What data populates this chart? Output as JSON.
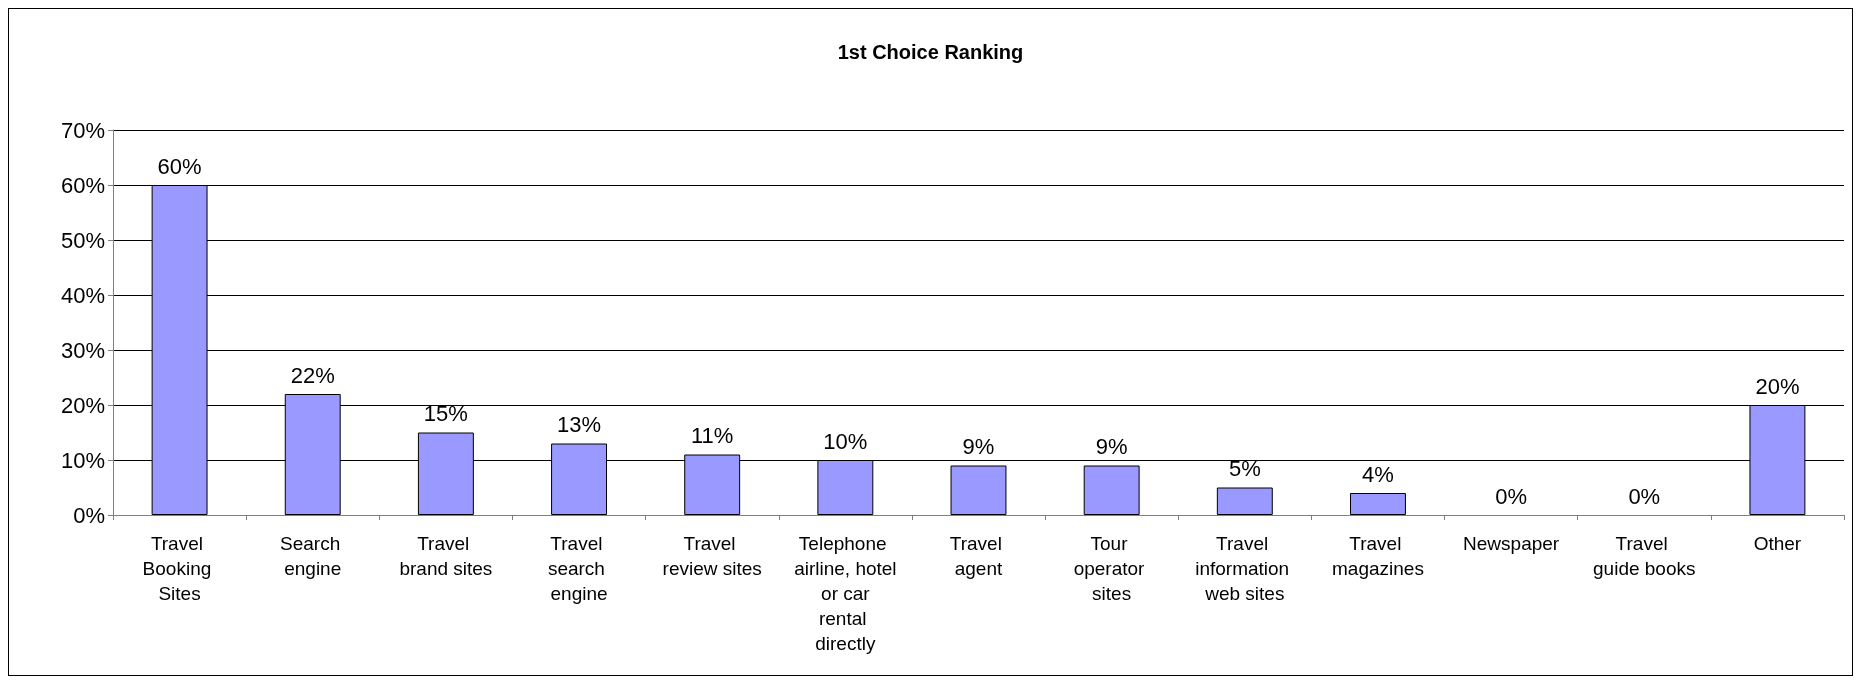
{
  "chart_data": {
    "type": "bar",
    "title": "1st Choice Ranking",
    "categories": [
      "Travel Booking Sites",
      "Search engine",
      "Travel brand sites",
      "Travel search engine",
      "Travel review sites",
      "Telephone airline, hotel or car rental directly",
      "Travel agent",
      "Tour operator sites",
      "Travel information web sites",
      "Travel magazines",
      "Newspaper",
      "Travel guide books",
      "Other"
    ],
    "values": [
      60,
      22,
      15,
      13,
      11,
      10,
      9,
      9,
      5,
      4,
      0,
      0,
      20
    ],
    "value_labels": [
      "60%",
      "22%",
      "15%",
      "13%",
      "11%",
      "10%",
      "9%",
      "9%",
      "5%",
      "4%",
      "0%",
      "0%",
      "20%"
    ],
    "color": "#9999ff",
    "ylim": [
      0,
      70
    ],
    "yticks": [
      {
        "value": 0,
        "label": "0%"
      },
      {
        "value": 10,
        "label": "10%"
      },
      {
        "value": 20,
        "label": "20%"
      },
      {
        "value": 30,
        "label": "30%"
      },
      {
        "value": 40,
        "label": "40%"
      },
      {
        "value": 50,
        "label": "50%"
      },
      {
        "value": 60,
        "label": "60%"
      },
      {
        "value": 70,
        "label": "70%"
      }
    ],
    "grid": "y"
  }
}
